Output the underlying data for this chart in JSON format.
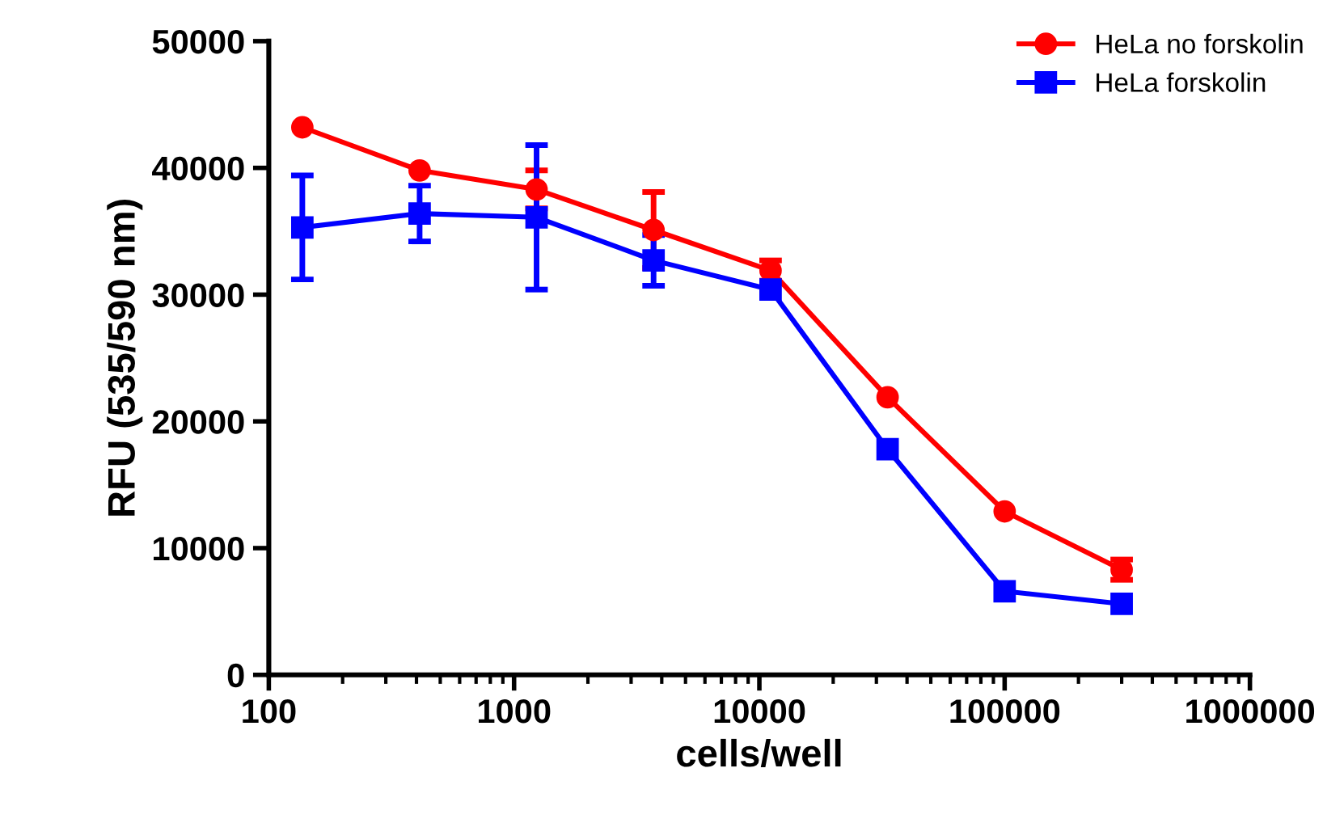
{
  "chart_data": {
    "type": "line",
    "xlabel": "cells/well",
    "ylabel": "RFU (535/590 nm)",
    "x": [
      137,
      412,
      1235,
      3704,
      11111,
      33333,
      100000,
      300000
    ],
    "series": [
      {
        "name": "HeLa no forskolin",
        "color": "#ff0000",
        "marker": "circle",
        "values": [
          43200,
          39800,
          38300,
          35100,
          31900,
          21900,
          12900,
          8300
        ],
        "errors": [
          null,
          null,
          1500,
          3000,
          800,
          null,
          null,
          800
        ]
      },
      {
        "name": "HeLa forskolin",
        "color": "#0000ff",
        "marker": "square",
        "values": [
          35300,
          36400,
          36100,
          32700,
          30400,
          17800,
          6600,
          5600
        ],
        "errors": [
          4100,
          2200,
          5700,
          2000,
          null,
          null,
          null,
          null
        ]
      }
    ],
    "log": "x",
    "xlim": [
      100,
      1000000
    ],
    "xticks": [
      100,
      1000,
      10000,
      100000,
      1000000
    ],
    "ylim": [
      0,
      50000
    ],
    "yticks": [
      0,
      10000,
      20000,
      30000,
      40000,
      50000
    ],
    "grid": false,
    "legend": "top right",
    "line_style": "solid"
  }
}
